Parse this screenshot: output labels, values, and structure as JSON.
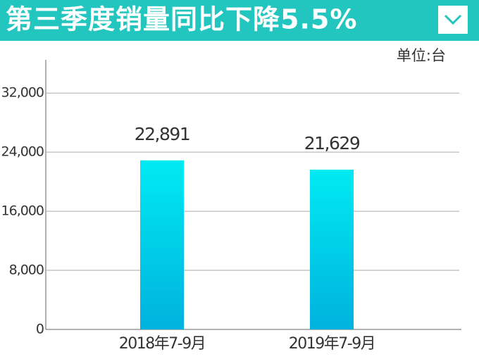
{
  "chart_data": {
    "type": "bar",
    "title": "第三季度销量同比下降5.5%",
    "unit": "单位:台",
    "categories": [
      "2018年7-9月",
      "2019年7-9月"
    ],
    "values": [
      22891,
      21629
    ],
    "value_labels": [
      "22,891",
      "21,629"
    ],
    "color": [
      "#00eaf2",
      "#00b2de"
    ],
    "ylim": [
      0,
      36500
    ],
    "yticks": [
      0,
      {
        "value": 8000,
        "label": "8,000"
      },
      {
        "value": 16000,
        "label": "16,000"
      },
      {
        "value": 24000,
        "label": "24,000"
      },
      {
        "value": 32000,
        "label": "32,000"
      }
    ],
    "grid": true
  }
}
